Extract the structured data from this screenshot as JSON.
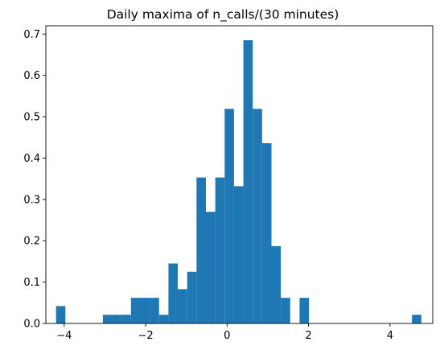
{
  "chart_data": {
    "type": "bar",
    "title": "Daily maxima of n_calls/(30 minutes)",
    "xlabel": "",
    "ylabel": "",
    "xlim": [
      -4.45,
      5.05
    ],
    "ylim": [
      0,
      0.72
    ],
    "x_ticks": [
      -4,
      -2,
      0,
      2,
      4
    ],
    "y_ticks": [
      0.0,
      0.1,
      0.2,
      0.3,
      0.4,
      0.5,
      0.6,
      0.7
    ],
    "bar_color": "#1f77b4",
    "bin_edges": [
      -4.2,
      -3.97,
      -3.74,
      -3.51,
      -3.28,
      -3.05,
      -2.82,
      -2.59,
      -2.36,
      -2.13,
      -1.9,
      -1.67,
      -1.44,
      -1.21,
      -0.98,
      -0.75,
      -0.52,
      -0.29,
      -0.06,
      0.17,
      0.4,
      0.63,
      0.86,
      1.09,
      1.32,
      1.55,
      1.78,
      2.01,
      2.24,
      2.47,
      2.7,
      2.93,
      3.16,
      3.39,
      3.62,
      3.85,
      4.08,
      4.31,
      4.54,
      4.77,
      5.0
    ],
    "values": [
      0.042,
      0,
      0,
      0,
      0,
      0.021,
      0.021,
      0.021,
      0.062,
      0.062,
      0.062,
      0.021,
      0.145,
      0.083,
      0.125,
      0.353,
      0.27,
      0.353,
      0.519,
      0.332,
      0.685,
      0.519,
      0.436,
      0.187,
      0.062,
      0,
      0.062,
      0,
      0,
      0,
      0,
      0,
      0,
      0,
      0,
      0,
      0,
      0,
      0.021,
      0
    ],
    "grid": false,
    "legend": "none"
  }
}
